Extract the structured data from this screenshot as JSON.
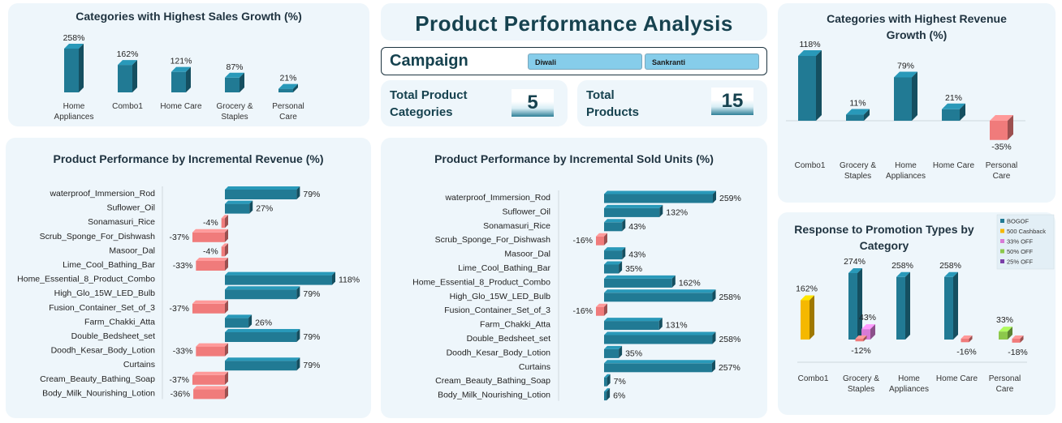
{
  "header": {
    "title": "Product Performance Analysis",
    "campaign_label": "Campaign",
    "campaign_options": [
      "Diwali",
      "Sankranti"
    ]
  },
  "kpis": [
    {
      "label_line1": "Total Product",
      "label_line2": "Categories",
      "value": "5"
    },
    {
      "label_line1": "Total",
      "label_line2": "Products",
      "value": "15"
    }
  ],
  "colors": {
    "teal": "#217a94",
    "teal_dark": "#135467",
    "teal_top": "#3c94ad",
    "pink": "#f07b7b",
    "pink_dark": "#c45a5a",
    "panel_bg": "#eef6fb",
    "bogof": "#217a94",
    "cashback": "#f5b800",
    "off33": "#d77bd6",
    "off50": "#8cc84b",
    "off25": "#7a3fa8"
  },
  "chart_data": [
    {
      "id": "sales_growth",
      "type": "bar",
      "title": "Categories with Highest Sales Growth (%)",
      "categories": [
        [
          "Home",
          "Appliances"
        ],
        [
          "Combo1"
        ],
        [
          "Home Care"
        ],
        [
          "Grocery &",
          "Staples"
        ],
        [
          "Personal",
          "Care"
        ]
      ],
      "values": [
        258,
        162,
        121,
        87,
        21
      ],
      "labels": [
        "258%",
        "162%",
        "121%",
        "87%",
        "21%"
      ]
    },
    {
      "id": "revenue_growth",
      "type": "bar",
      "title_lines": [
        "Categories with Highest Revenue",
        "Growth (%)"
      ],
      "categories": [
        [
          "Combo1"
        ],
        [
          "Grocery &",
          "Staples"
        ],
        [
          "Home",
          "Appliances"
        ],
        [
          "Home Care"
        ],
        [
          "Personal",
          "Care"
        ]
      ],
      "values": [
        118,
        11,
        79,
        21,
        -35
      ],
      "labels": [
        "118%",
        "11%",
        "79%",
        "21%",
        "-35%"
      ]
    },
    {
      "id": "incremental_revenue",
      "type": "bar",
      "orientation": "horizontal",
      "title": "Product Performance by Incremental Revenue (%)",
      "categories": [
        "waterproof_Immersion_Rod",
        "Suflower_Oil",
        "Sonamasuri_Rice",
        "Scrub_Sponge_For_Dishwash",
        "Masoor_Dal",
        "Lime_Cool_Bathing_Bar",
        "Home_Essential_8_Product_Combo",
        "High_Glo_15W_LED_Bulb",
        "Fusion_Container_Set_of_3",
        "Farm_Chakki_Atta",
        "Double_Bedsheet_set",
        "Doodh_Kesar_Body_Lotion",
        "Curtains",
        "Cream_Beauty_Bathing_Soap",
        "Body_Milk_Nourishing_Lotion"
      ],
      "values": [
        79,
        27,
        -4,
        -37,
        -4,
        -33,
        118,
        79,
        -37,
        26,
        79,
        -33,
        79,
        -37,
        -36
      ],
      "labels": [
        "79%",
        "27%",
        "-4%",
        "-37%",
        "-4%",
        "-33%",
        "118%",
        "79%",
        "-37%",
        "26%",
        "79%",
        "-33%",
        "79%",
        "-37%",
        "-36%"
      ]
    },
    {
      "id": "incremental_units",
      "type": "bar",
      "orientation": "horizontal",
      "title": "Product Performance by Incremental Sold Units (%)",
      "categories": [
        "waterproof_Immersion_Rod",
        "Suflower_Oil",
        "Sonamasuri_Rice",
        "Scrub_Sponge_For_Dishwash",
        "Masoor_Dal",
        "Lime_Cool_Bathing_Bar",
        "Home_Essential_8_Product_Combo",
        "High_Glo_15W_LED_Bulb",
        "Fusion_Container_Set_of_3",
        "Farm_Chakki_Atta",
        "Double_Bedsheet_set",
        "Doodh_Kesar_Body_Lotion",
        "Curtains",
        "Cream_Beauty_Bathing_Soap",
        "Body_Milk_Nourishing_Lotion"
      ],
      "values": [
        259,
        132,
        43,
        -16,
        43,
        35,
        162,
        258,
        -16,
        131,
        258,
        35,
        257,
        7,
        6
      ],
      "labels": [
        "259%",
        "132%",
        "43%",
        "-16%",
        "43%",
        "35%",
        "162%",
        "258%",
        "-16%",
        "131%",
        "258%",
        "35%",
        "257%",
        "7%",
        "6%"
      ]
    },
    {
      "id": "promotion_response",
      "type": "bar",
      "title_lines": [
        "Response to Promotion Types by",
        "Category"
      ],
      "categories": [
        [
          "Combo1"
        ],
        [
          "Grocery &",
          "Staples"
        ],
        [
          "Home",
          "Appliances"
        ],
        [
          "Home Care"
        ],
        [
          "Personal",
          "Care"
        ]
      ],
      "series": [
        {
          "name": "BOGOF",
          "color": "#217a94",
          "values": [
            null,
            274,
            258,
            258,
            null
          ],
          "labels": [
            "",
            "274%",
            "258%",
            "258%",
            ""
          ]
        },
        {
          "name": "500 Cashback",
          "color": "#f5b800",
          "values": [
            162,
            null,
            null,
            null,
            null
          ],
          "labels": [
            "162%",
            "",
            "",
            "",
            ""
          ]
        },
        {
          "name": "33% OFF",
          "color": "#d77bd6",
          "values": [
            null,
            43,
            null,
            null,
            null
          ],
          "labels": [
            "",
            "43%",
            "",
            "",
            ""
          ]
        },
        {
          "name": "50% OFF",
          "color": "#8cc84b",
          "values": [
            null,
            null,
            null,
            null,
            33
          ],
          "labels": [
            "",
            "",
            "",
            "",
            "33%"
          ]
        },
        {
          "name": "25% OFF",
          "color": "#7a3fa8",
          "values": [
            null,
            null,
            null,
            null,
            null
          ],
          "labels": [
            "",
            "",
            "",
            "",
            ""
          ]
        }
      ],
      "negatives": [
        {
          "category_index": 1,
          "value": -12,
          "label": "-12%"
        },
        {
          "category_index": 3,
          "value": -16,
          "label": "-16%"
        },
        {
          "category_index": 4,
          "value": -18,
          "label": "-18%"
        }
      ],
      "legend_position": "top-right"
    }
  ]
}
